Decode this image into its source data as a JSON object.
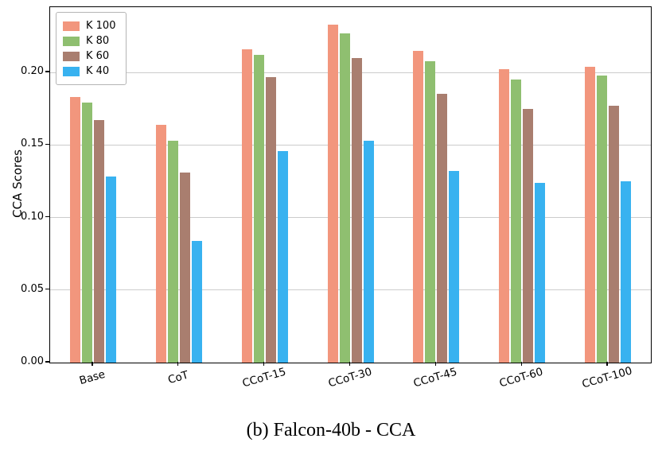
{
  "figure": {
    "caption": "(b) Falcon-40b - CCA"
  },
  "chart_data": {
    "type": "bar",
    "title": "",
    "xlabel": "",
    "ylabel": "CCA Scores",
    "categories": [
      "Base",
      "CoT",
      "CCoT-15",
      "CCoT-30",
      "CCoT-45",
      "CCoT-60",
      "CCoT-100"
    ],
    "series": [
      {
        "name": "K 100",
        "color": "#f2967d",
        "values": [
          0.183,
          0.164,
          0.216,
          0.233,
          0.215,
          0.202,
          0.204
        ]
      },
      {
        "name": "K 80",
        "color": "#8fbf70",
        "values": [
          0.179,
          0.153,
          0.212,
          0.227,
          0.208,
          0.195,
          0.198
        ]
      },
      {
        "name": "K 60",
        "color": "#a97e6f",
        "values": [
          0.167,
          0.131,
          0.197,
          0.21,
          0.185,
          0.175,
          0.177
        ]
      },
      {
        "name": "K 40",
        "color": "#38b2f0",
        "values": [
          0.128,
          0.084,
          0.146,
          0.153,
          0.132,
          0.124,
          0.125
        ]
      }
    ],
    "ylim": [
      0,
      0.245
    ],
    "yticks": [
      0.0,
      0.05,
      0.1,
      0.15,
      0.2
    ],
    "grid": "horizontal",
    "legend_position": "upper-left"
  }
}
